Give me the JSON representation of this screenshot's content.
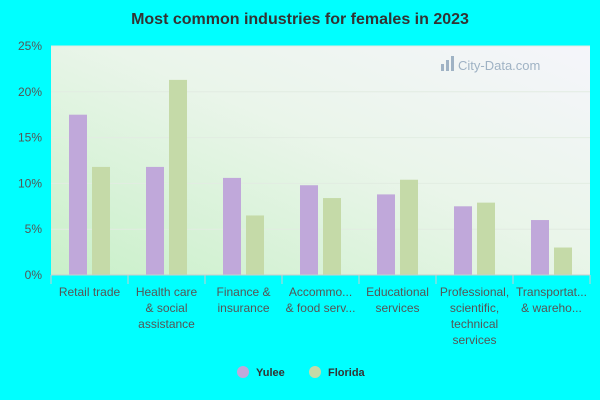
{
  "chart_data": {
    "type": "bar",
    "title": "Most common industries for females in 2023",
    "xlabel": "",
    "ylabel": "",
    "ylim": [
      0,
      25
    ],
    "yticks": [
      0,
      5,
      10,
      15,
      20,
      25
    ],
    "ytick_labels": [
      "0%",
      "5%",
      "10%",
      "15%",
      "20%",
      "25%"
    ],
    "categories": [
      [
        "Retail trade"
      ],
      [
        "Health care",
        "& social",
        "assistance"
      ],
      [
        "Finance &",
        "insurance"
      ],
      [
        "Accommo...",
        "& food serv..."
      ],
      [
        "Educational",
        "services"
      ],
      [
        "Professional,",
        "scientific,",
        "technical",
        "services"
      ],
      [
        "Transportat...",
        "& wareho..."
      ]
    ],
    "series": [
      {
        "name": "Yulee",
        "color": "#C0A8DA",
        "values": [
          17.5,
          11.8,
          10.6,
          9.8,
          8.8,
          7.5,
          6.0
        ]
      },
      {
        "name": "Florida",
        "color": "#C5DAA8",
        "values": [
          11.8,
          21.3,
          6.5,
          8.4,
          10.4,
          7.9,
          3.0
        ]
      }
    ],
    "legend_position": "bottom-center",
    "grid": true
  },
  "watermark": "City-Data.com"
}
